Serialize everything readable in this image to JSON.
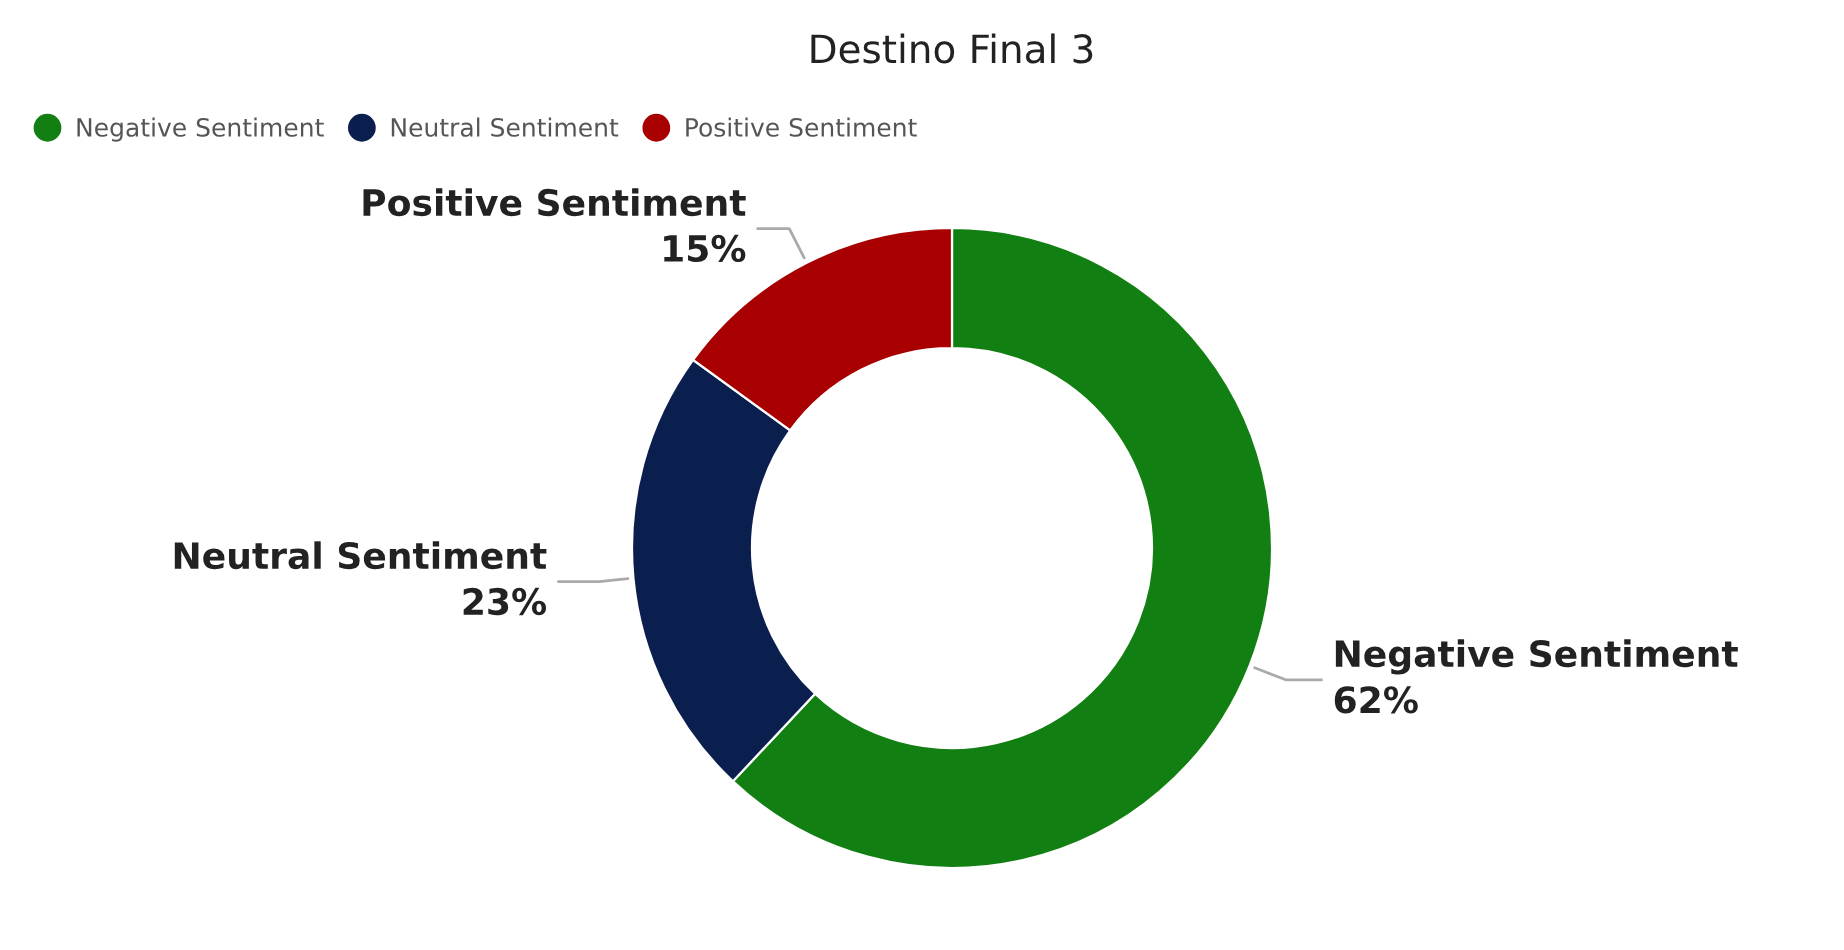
{
  "chart_data": {
    "type": "donut",
    "title": "Destino Final 3",
    "categories": [
      "Negative Sentiment",
      "Neutral Sentiment",
      "Positive Sentiment"
    ],
    "values": [
      62,
      23,
      15
    ],
    "colors": [
      "#127f12",
      "#0b1f4f",
      "#a80000"
    ],
    "value_labels": [
      "62%",
      "23%",
      "15%"
    ],
    "legend": "top left"
  }
}
